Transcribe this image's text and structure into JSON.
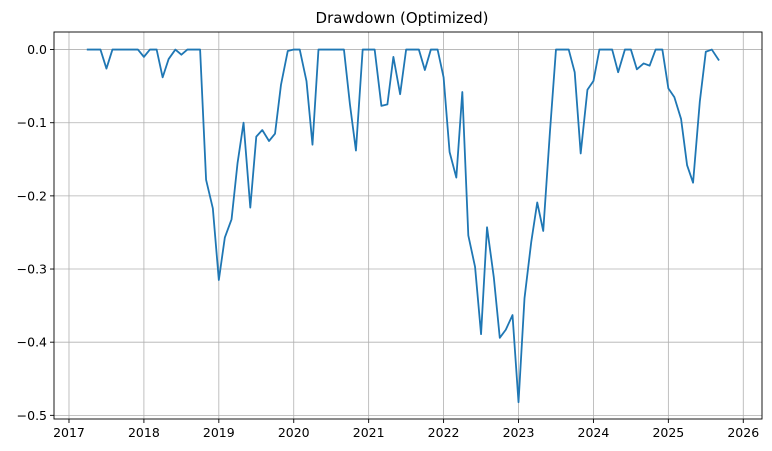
{
  "chart_data": {
    "type": "line",
    "title": "Drawdown (Optimized)",
    "xlabel": "",
    "ylabel": "",
    "grid": true,
    "xlim": [
      2016.8,
      2026.25
    ],
    "ylim": [
      -0.505,
      0.024
    ],
    "x_ticks": [
      2017,
      2018,
      2019,
      2020,
      2021,
      2022,
      2023,
      2024,
      2025,
      2026
    ],
    "x_tick_labels": [
      "2017",
      "2018",
      "2019",
      "2020",
      "2021",
      "2022",
      "2023",
      "2024",
      "2025",
      "2026"
    ],
    "y_ticks": [
      0.0,
      -0.1,
      -0.2,
      -0.3,
      -0.4,
      -0.5
    ],
    "y_tick_labels": [
      "0.0",
      "−0.1",
      "−0.2",
      "−0.3",
      "−0.4",
      "−0.5"
    ],
    "series": [
      {
        "color": "#1f77b4",
        "x": [
          2017.25,
          2017.33,
          2017.42,
          2017.5,
          2017.58,
          2017.67,
          2017.75,
          2017.83,
          2017.92,
          2018.0,
          2018.08,
          2018.17,
          2018.25,
          2018.33,
          2018.42,
          2018.5,
          2018.58,
          2018.67,
          2018.75,
          2018.83,
          2018.92,
          2019.0,
          2019.08,
          2019.17,
          2019.25,
          2019.33,
          2019.42,
          2019.5,
          2019.58,
          2019.67,
          2019.75,
          2019.83,
          2019.92,
          2020.0,
          2020.08,
          2020.17,
          2020.25,
          2020.33,
          2020.42,
          2020.5,
          2020.58,
          2020.67,
          2020.75,
          2020.83,
          2020.92,
          2021.0,
          2021.08,
          2021.17,
          2021.25,
          2021.33,
          2021.42,
          2021.5,
          2021.58,
          2021.67,
          2021.75,
          2021.83,
          2021.92,
          2022.0,
          2022.08,
          2022.17,
          2022.25,
          2022.33,
          2022.42,
          2022.5,
          2022.58,
          2022.67,
          2022.75,
          2022.83,
          2022.92,
          2023.0,
          2023.08,
          2023.17,
          2023.25,
          2023.33,
          2023.42,
          2023.5,
          2023.58,
          2023.67,
          2023.75,
          2023.83,
          2023.92,
          2024.0,
          2024.08,
          2024.17,
          2024.25,
          2024.33,
          2024.42,
          2024.5,
          2024.58,
          2024.67,
          2024.75,
          2024.83,
          2024.92,
          2025.0,
          2025.08,
          2025.17,
          2025.25,
          2025.33,
          2025.42,
          2025.5,
          2025.58,
          2025.67
        ],
        "values": [
          0.0,
          0.0,
          0.0,
          -0.026,
          0.0,
          0.0,
          0.0,
          0.0,
          0.0,
          -0.01,
          0.0,
          0.0,
          -0.038,
          -0.013,
          0.0,
          -0.007,
          0.0,
          0.0,
          0.0,
          -0.178,
          -0.217,
          -0.315,
          -0.257,
          -0.232,
          -0.155,
          -0.1,
          -0.216,
          -0.119,
          -0.11,
          -0.125,
          -0.115,
          -0.048,
          -0.002,
          0.0,
          0.0,
          -0.043,
          -0.13,
          0.0,
          0.0,
          0.0,
          0.0,
          0.0,
          -0.075,
          -0.138,
          0.0,
          0.0,
          0.0,
          -0.077,
          -0.075,
          -0.01,
          -0.061,
          0.0,
          0.0,
          0.0,
          -0.028,
          0.0,
          0.0,
          -0.038,
          -0.14,
          -0.175,
          -0.058,
          -0.254,
          -0.297,
          -0.389,
          -0.243,
          -0.311,
          -0.394,
          -0.383,
          -0.363,
          -0.482,
          -0.34,
          -0.263,
          -0.209,
          -0.248,
          -0.112,
          0.0,
          0.0,
          0.0,
          -0.031,
          -0.142,
          -0.055,
          -0.043,
          0.0,
          0.0,
          0.0,
          -0.031,
          0.0,
          0.0,
          -0.027,
          -0.019,
          -0.022,
          0.0,
          0.0,
          -0.053,
          -0.065,
          -0.095,
          -0.158,
          -0.182,
          -0.071,
          -0.003,
          0.0,
          -0.014
        ]
      }
    ]
  }
}
